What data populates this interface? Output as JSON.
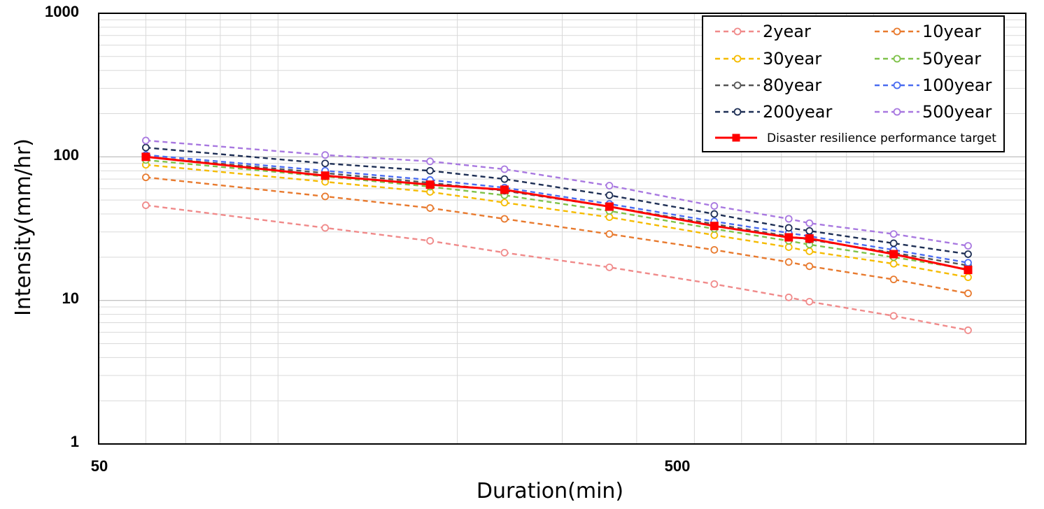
{
  "chart_data": {
    "type": "line",
    "xscale": "log",
    "yscale": "log",
    "xlabel": "Duration(min)",
    "ylabel": "Intensity(mm/hr)",
    "xlim": [
      50,
      1800
    ],
    "ylim": [
      1,
      1000
    ],
    "x_tick_labels": [
      "50",
      "500"
    ],
    "y_tick_labels": [
      "1",
      "10",
      "100",
      "1000"
    ],
    "legend_position": "top-right",
    "x": [
      60,
      120,
      180,
      240,
      360,
      540,
      720,
      780,
      1080,
      1440
    ],
    "series": [
      {
        "name": "2year",
        "color": "#f08a8a",
        "style": "dashed",
        "marker": "circle",
        "values": [
          46,
          32,
          26,
          21.5,
          17,
          13,
          10.5,
          9.8,
          7.8,
          6.2
        ]
      },
      {
        "name": "10year",
        "color": "#e87a2e",
        "style": "dashed",
        "marker": "circle",
        "values": [
          72,
          53,
          44,
          37,
          29,
          22.5,
          18.5,
          17.3,
          14,
          11.2
        ]
      },
      {
        "name": "30year",
        "color": "#f5bb00",
        "style": "dashed",
        "marker": "circle",
        "values": [
          88,
          67,
          57,
          48,
          38,
          28.5,
          23.5,
          22,
          18,
          14.5
        ]
      },
      {
        "name": "50year",
        "color": "#7fc24a",
        "style": "dashed",
        "marker": "circle",
        "values": [
          95,
          73,
          62,
          54,
          42,
          31.5,
          26,
          24.5,
          20,
          16.5
        ]
      },
      {
        "name": "80year",
        "color": "#555555",
        "style": "dashed",
        "marker": "circle",
        "values": [
          100,
          77,
          66,
          58,
          45,
          34,
          28,
          26.5,
          21.5,
          17.5
        ]
      },
      {
        "name": "100year",
        "color": "#4a6cf0",
        "style": "dashed",
        "marker": "circle",
        "values": [
          103,
          80,
          69,
          61,
          47,
          35.5,
          29.5,
          28,
          22.5,
          18.3
        ]
      },
      {
        "name": "200year",
        "color": "#1e2f55",
        "style": "dashed",
        "marker": "circle",
        "values": [
          116,
          90,
          80,
          70,
          54,
          40,
          32,
          30.5,
          25,
          21
        ]
      },
      {
        "name": "500year",
        "color": "#a878e0",
        "style": "dashed",
        "marker": "circle",
        "values": [
          130,
          103,
          93,
          82,
          63,
          45.5,
          37,
          34.5,
          29,
          24
        ]
      },
      {
        "name": "Disaster resilience performance target",
        "color": "#ff0000",
        "style": "solid",
        "marker": "square",
        "values": [
          100,
          74,
          64,
          59,
          45,
          33,
          27.5,
          27,
          21,
          16.3
        ]
      }
    ]
  }
}
